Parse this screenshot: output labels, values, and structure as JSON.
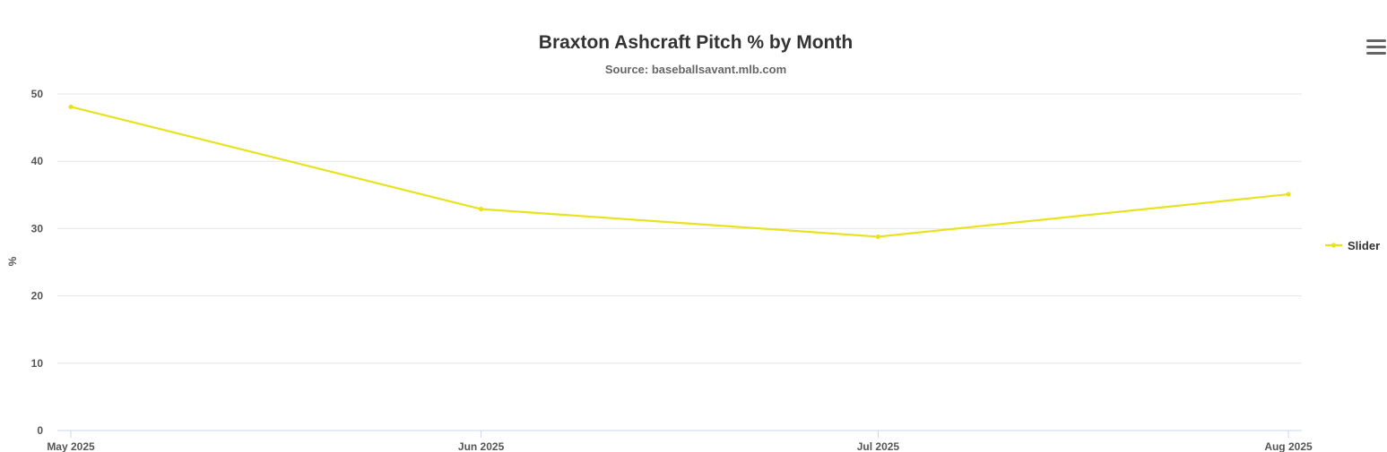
{
  "chart_data": {
    "type": "line",
    "title": "Braxton Ashcraft Pitch % by Month",
    "subtitle": "Source: baseballsavant.mlb.com",
    "xlabel": "",
    "ylabel": "%",
    "categories": [
      "May 2025",
      "Jun 2025",
      "Jul 2025",
      "Aug 2025"
    ],
    "x": [
      "2025-05-01",
      "2025-06-01",
      "2025-07-01",
      "2025-08-01"
    ],
    "yticks": [
      0,
      10,
      20,
      30,
      40,
      50
    ],
    "ylim": [
      0,
      50
    ],
    "grid": true,
    "legend_position": "right",
    "series": [
      {
        "name": "Slider",
        "color": "#e8e31e",
        "values": [
          48.1,
          32.9,
          28.8,
          35.1
        ]
      }
    ]
  },
  "menu": {
    "icon": "hamburger-menu-icon"
  }
}
